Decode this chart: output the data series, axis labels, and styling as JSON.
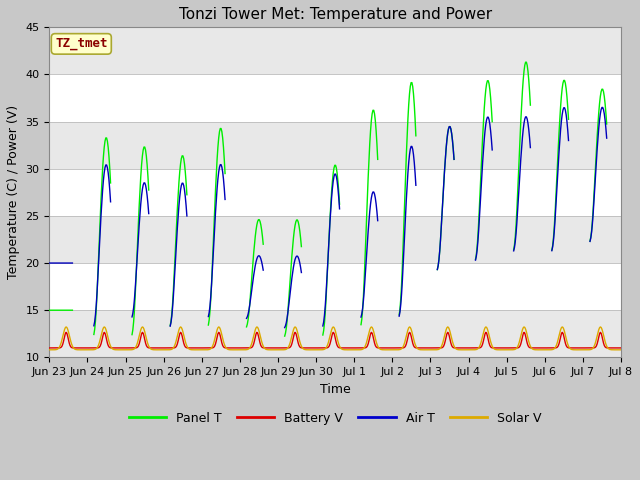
{
  "title": "Tonzi Tower Met: Temperature and Power",
  "xlabel": "Time",
  "ylabel": "Temperature (C) / Power (V)",
  "ylim": [
    10,
    45
  ],
  "annotation_text": "TZ_tmet",
  "annotation_color": "#8b0000",
  "annotation_bg": "#ffffcc",
  "annotation_border": "#aaa830",
  "x_tick_labels": [
    "Jun 23",
    "Jun 24",
    "Jun 25",
    "Jun 26",
    "Jun 27",
    "Jun 28",
    "Jun 29",
    "Jun 30",
    "Jul 1",
    "Jul 2",
    "Jul 3",
    "Jul 4",
    "Jul 5",
    "Jul 6",
    "Jul 7",
    "Jul 8"
  ],
  "legend_items": [
    "Panel T",
    "Battery V",
    "Air T",
    "Solar V"
  ],
  "legend_colors": [
    "#00ee00",
    "#dd0000",
    "#0000cc",
    "#ddaa00"
  ],
  "panel_color": "#00ee00",
  "battery_color": "#dd0000",
  "air_color": "#0000bb",
  "solar_color": "#ddaa00",
  "title_fontsize": 11,
  "axis_label_fontsize": 9,
  "tick_fontsize": 8,
  "fig_bg": "#c8c8c8",
  "plot_bg": "#ffffff",
  "band_color": "#e8e8e8"
}
